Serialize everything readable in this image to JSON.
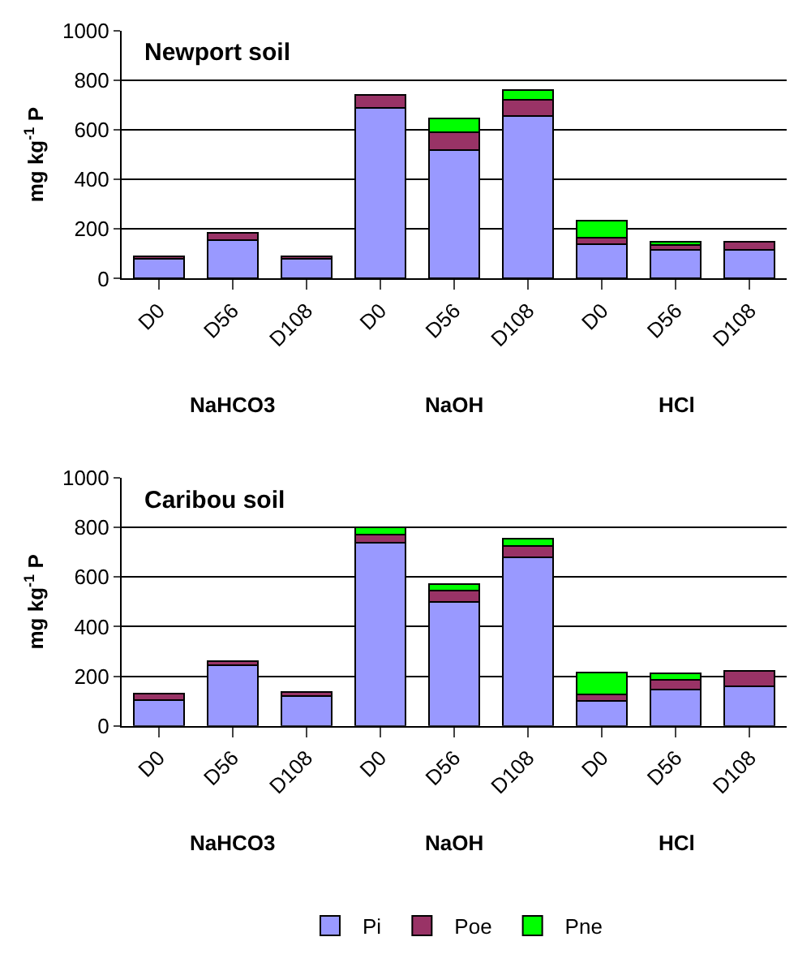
{
  "chart_data": [
    {
      "type": "bar",
      "title": "Newport soil",
      "ylabel": "mg kg$^{-1}$ P",
      "stacked": true,
      "categories": [
        "D0",
        "D56",
        "D108",
        "D0",
        "D56",
        "D108",
        "D0",
        "D56",
        "D108"
      ],
      "ylim": [
        0,
        1000
      ],
      "yticks": [
        0,
        200,
        400,
        600,
        800,
        1000
      ],
      "grid": "y",
      "annotations": [
        "NaHCO3",
        "NaOH",
        "HCl"
      ],
      "series": [
        {
          "color": "#9999ff",
          "values": [
            80,
            155,
            80,
            690,
            520,
            655,
            140,
            115,
            115
          ]
        },
        {
          "color": "#993366",
          "values": [
            10,
            30,
            10,
            50,
            70,
            65,
            25,
            20,
            35
          ]
        },
        {
          "color": "#00ff00",
          "values": [
            null,
            null,
            null,
            null,
            55,
            40,
            70,
            15,
            null
          ]
        }
      ]
    },
    {
      "type": "bar",
      "title": "Caribou soil",
      "ylabel": "mg kg$^{-1}$ P",
      "stacked": true,
      "categories": [
        "D0",
        "D56",
        "D108",
        "D0",
        "D56",
        "D108",
        "D0",
        "D56",
        "D108"
      ],
      "ylim": [
        0,
        1000
      ],
      "yticks": [
        0,
        200,
        400,
        600,
        800,
        1000
      ],
      "grid": "y",
      "legend": "bottom",
      "annotations": [
        "NaHCO3",
        "NaOH",
        "HCl"
      ],
      "series": [
        {
          "name": "Pi",
          "color": "#9999ff",
          "values": [
            105,
            245,
            120,
            740,
            500,
            680,
            100,
            145,
            160
          ]
        },
        {
          "name": "Poe",
          "color": "#993366",
          "values": [
            25,
            15,
            15,
            30,
            45,
            45,
            25,
            40,
            60
          ]
        },
        {
          "name": "Pne",
          "color": "#00ff00",
          "values": [
            null,
            null,
            null,
            30,
            25,
            30,
            90,
            25,
            null
          ]
        }
      ]
    }
  ]
}
